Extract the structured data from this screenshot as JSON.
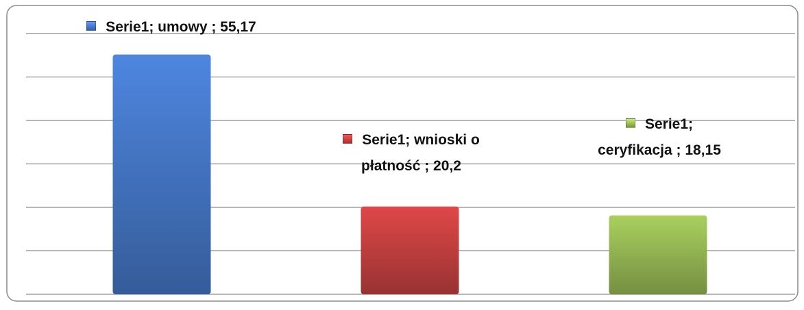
{
  "chart_data": {
    "type": "bar",
    "series": [
      {
        "name": "Serie1",
        "values": [
          55.17,
          20.2,
          18.15
        ],
        "colors": [
          "#4a80d4",
          "#d44545",
          "#a2c65a"
        ],
        "value_labels": [
          "Serie1; umowy ; 55,17",
          "Serie1; wnioski o płatność ; 20,2",
          "Serie1; ceryfikacja ; 18,15"
        ]
      }
    ],
    "ylim": [
      0,
      60
    ],
    "yticks": [
      0,
      10,
      20,
      30,
      40,
      50,
      60
    ],
    "grid": true
  }
}
